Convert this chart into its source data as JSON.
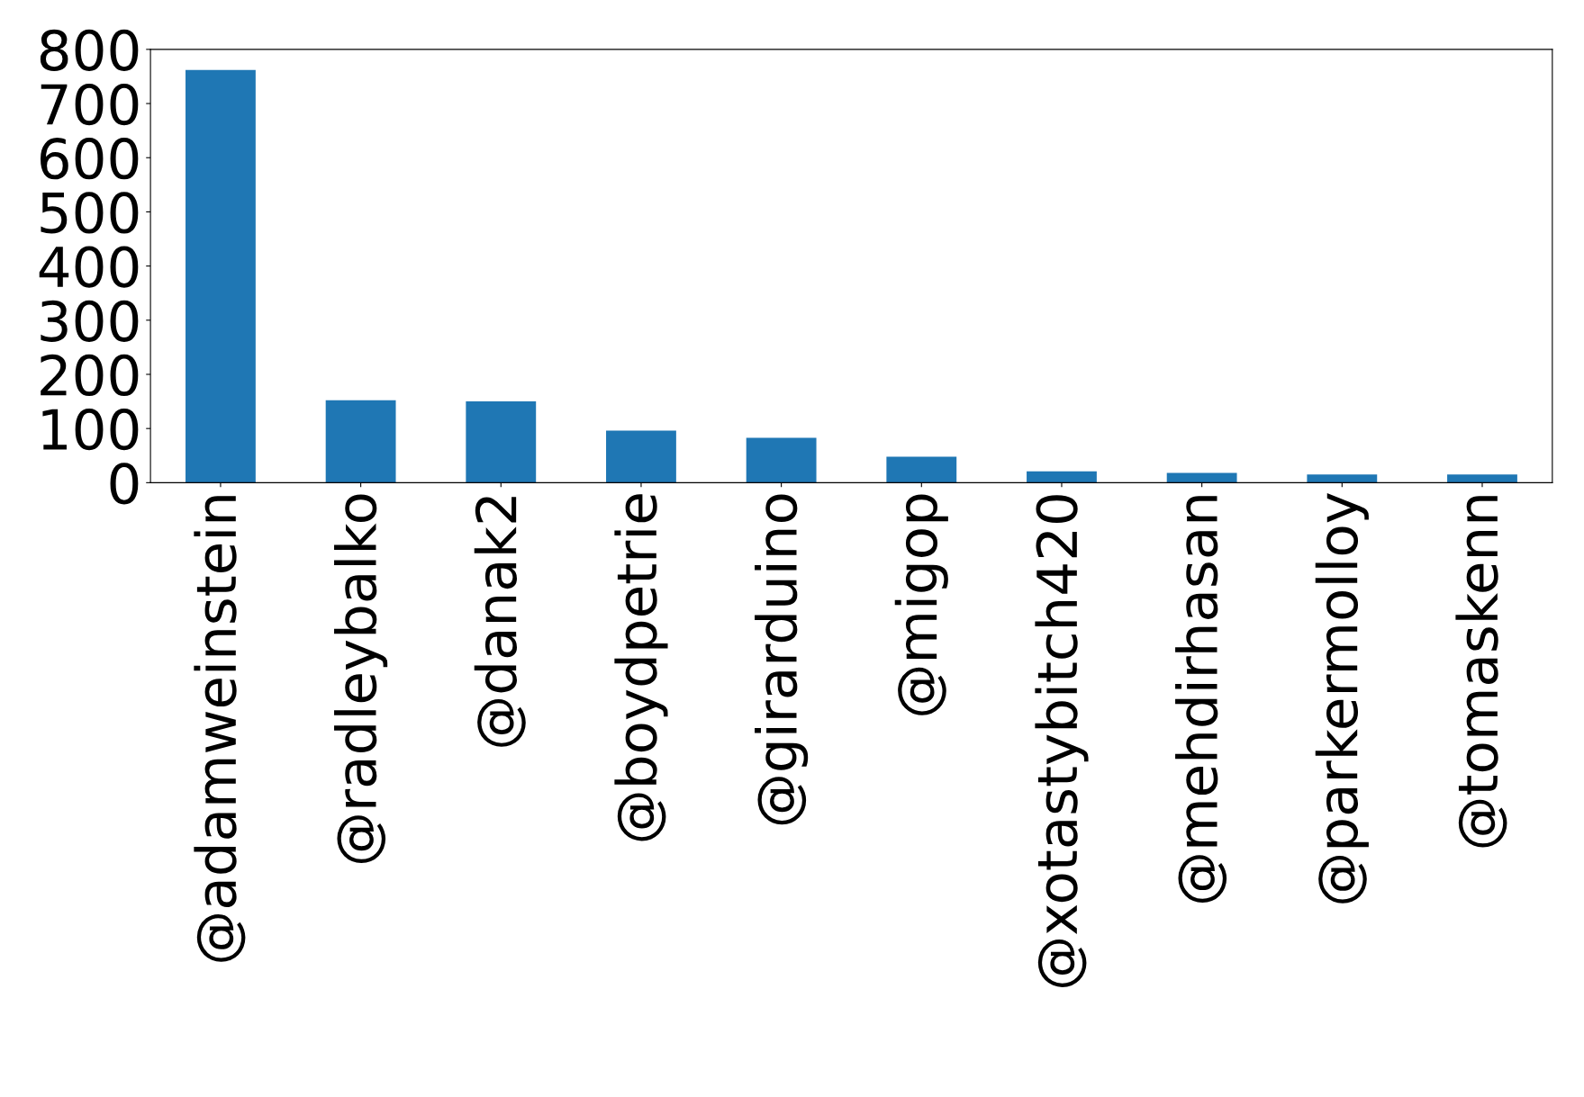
{
  "chart_data": {
    "type": "bar",
    "categories": [
      "@adamweinstein",
      "@radleybalko",
      "@danak2",
      "@boydpetrie",
      "@girarduino",
      "@migop",
      "@xotastybitch420",
      "@mehdirhasan",
      "@parkermolloy",
      "@tomaskenn"
    ],
    "values": [
      762,
      152,
      150,
      96,
      83,
      48,
      21,
      18,
      15,
      15
    ],
    "color": "#1f77b4",
    "ylim": [
      0,
      800
    ],
    "yticks": [
      0,
      100,
      200,
      300,
      400,
      500,
      600,
      700,
      800
    ],
    "grid": false,
    "legend": false
  }
}
